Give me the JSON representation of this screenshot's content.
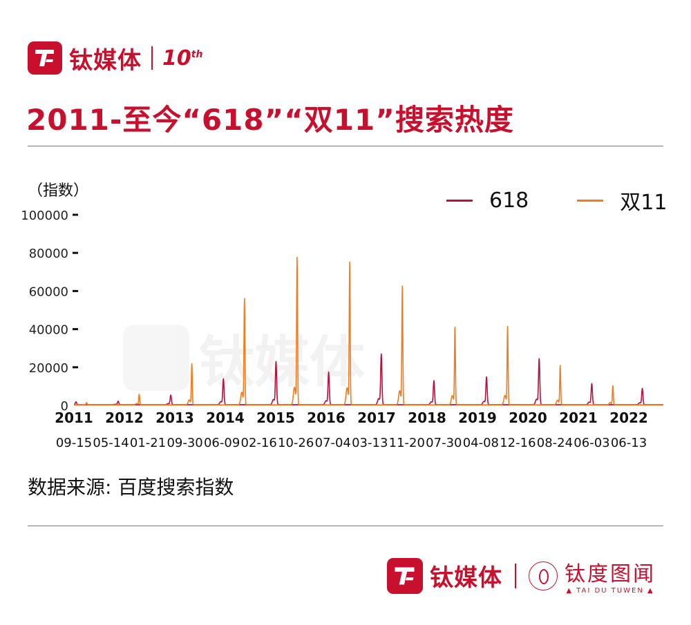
{
  "brand": {
    "name": "钛媒体",
    "tenth": "10",
    "tenth_sup": "th"
  },
  "title": "2011-至今“618”“双11”搜索热度",
  "unit_label": "（指数）",
  "source": "数据来源: 百度搜索指数",
  "footer": {
    "brand_name": "钛媒体",
    "tuwen_cn": "钛度图闻",
    "tuwen_en": "▲ TAI DU TUWEN ▲"
  },
  "watermark": {
    "brand_name": "钛媒体"
  },
  "colors": {
    "accent": "#c8102e",
    "s618": "#b5123d",
    "s1111": "#f07c1f"
  },
  "chart_data": {
    "type": "line",
    "xlabel": "",
    "ylabel": "（指数）",
    "ylim": [
      0,
      100000
    ],
    "y_ticks": [
      0,
      20000,
      40000,
      60000,
      80000,
      100000
    ],
    "x_range": [
      2011.62,
      2022.82
    ],
    "year_labels": [
      "2011",
      "2012",
      "2013",
      "2014",
      "2015",
      "2016",
      "2017",
      "2018",
      "2019",
      "2020",
      "2021",
      "2022"
    ],
    "date_labels": [
      "09-15",
      "05-14",
      "01-21",
      "09-30",
      "06-09",
      "02-16",
      "10-26",
      "07-04",
      "03-13",
      "11-20",
      "07-30",
      "04-08",
      "12-16",
      "08-24",
      "06-03",
      "06-13"
    ],
    "legend_position": "top-right",
    "series": [
      {
        "name": "618",
        "baseline": 400,
        "peaks": [
          {
            "x": 2011.66,
            "y": 1500
          },
          {
            "x": 2012.46,
            "y": 1800
          },
          {
            "x": 2013.46,
            "y": 5000
          },
          {
            "x": 2014.46,
            "y": 13500
          },
          {
            "x": 2015.46,
            "y": 22500
          },
          {
            "x": 2016.46,
            "y": 17000
          },
          {
            "x": 2017.46,
            "y": 26500
          },
          {
            "x": 2018.46,
            "y": 12500
          },
          {
            "x": 2019.46,
            "y": 14500
          },
          {
            "x": 2020.46,
            "y": 24000
          },
          {
            "x": 2021.46,
            "y": 11000
          },
          {
            "x": 2022.42,
            "y": 8500
          }
        ]
      },
      {
        "name": "双11",
        "baseline": 300,
        "peaks": [
          {
            "x": 2011.86,
            "y": 1200
          },
          {
            "x": 2012.86,
            "y": 5500
          },
          {
            "x": 2013.86,
            "y": 21500
          },
          {
            "x": 2014.86,
            "y": 55500
          },
          {
            "x": 2015.86,
            "y": 77000
          },
          {
            "x": 2016.86,
            "y": 74500
          },
          {
            "x": 2017.86,
            "y": 62000
          },
          {
            "x": 2018.86,
            "y": 40500
          },
          {
            "x": 2019.86,
            "y": 41000
          },
          {
            "x": 2020.86,
            "y": 20500
          },
          {
            "x": 2021.86,
            "y": 10000
          }
        ]
      }
    ]
  }
}
